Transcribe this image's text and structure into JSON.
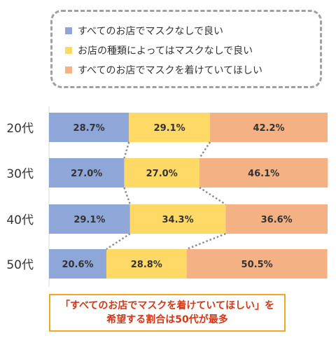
{
  "legend": [
    {
      "label": "すべてのお店でマスクなしで良い",
      "color": "#8fa6d9"
    },
    {
      "label": "お店の種類によってはマスクなしで良い",
      "color": "#ffd966"
    },
    {
      "label": "すべてのお店でマスクを着けていてほしい",
      "color": "#f4b183"
    }
  ],
  "callout": {
    "line1": "「すべてのお店でマスクを着けていてほしい」を",
    "line2": "希望する割合は50代が最多"
  },
  "chart_data": {
    "type": "bar",
    "orientation": "horizontal",
    "stacked": true,
    "percent_stacked": true,
    "categories": [
      "20代",
      "30代",
      "40代",
      "50代"
    ],
    "series": [
      {
        "name": "すべてのお店でマスクなしで良い",
        "values": [
          28.7,
          27.0,
          29.1,
          20.6
        ],
        "color": "#8fa6d9"
      },
      {
        "name": "お店の種類によってはマスクなしで良い",
        "values": [
          29.1,
          27.0,
          34.3,
          28.8
        ],
        "color": "#ffd966"
      },
      {
        "name": "すべてのお店でマスクを着けていてほしい",
        "values": [
          42.2,
          46.1,
          36.6,
          50.5
        ],
        "color": "#f4b183"
      }
    ],
    "data_labels": [
      [
        "28.7%",
        "29.1%",
        "42.2%"
      ],
      [
        "27.0%",
        "27.0%",
        "46.1%"
      ],
      [
        "29.1%",
        "34.3%",
        "36.6%"
      ],
      [
        "20.6%",
        "28.8%",
        "50.5%"
      ]
    ],
    "series_lines": "dotted",
    "legend_position": "top"
  }
}
